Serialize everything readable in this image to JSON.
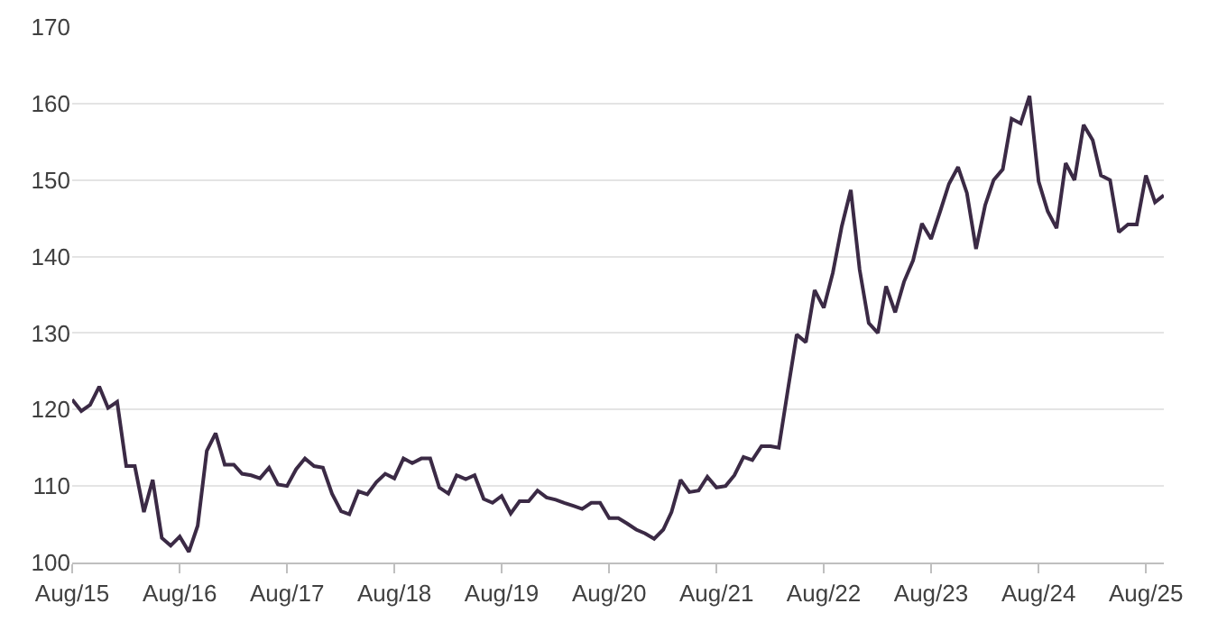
{
  "chart_data": {
    "type": "line",
    "x": [
      "2015-08",
      "2015-09",
      "2015-10",
      "2015-11",
      "2015-12",
      "2016-01",
      "2016-02",
      "2016-03",
      "2016-04",
      "2016-05",
      "2016-06",
      "2016-07",
      "2016-08",
      "2016-09",
      "2016-10",
      "2016-11",
      "2016-12",
      "2017-01",
      "2017-02",
      "2017-03",
      "2017-04",
      "2017-05",
      "2017-06",
      "2017-07",
      "2017-08",
      "2017-09",
      "2017-10",
      "2017-11",
      "2017-12",
      "2018-01",
      "2018-02",
      "2018-03",
      "2018-04",
      "2018-05",
      "2018-06",
      "2018-07",
      "2018-08",
      "2018-09",
      "2018-10",
      "2018-11",
      "2018-12",
      "2019-01",
      "2019-02",
      "2019-03",
      "2019-04",
      "2019-05",
      "2019-06",
      "2019-07",
      "2019-08",
      "2019-09",
      "2019-10",
      "2019-11",
      "2019-12",
      "2020-01",
      "2020-02",
      "2020-03",
      "2020-04",
      "2020-05",
      "2020-06",
      "2020-07",
      "2020-08",
      "2020-09",
      "2020-10",
      "2020-11",
      "2020-12",
      "2021-01",
      "2021-02",
      "2021-03",
      "2021-04",
      "2021-05",
      "2021-06",
      "2021-07",
      "2021-08",
      "2021-09",
      "2021-10",
      "2021-11",
      "2021-12",
      "2022-01",
      "2022-02",
      "2022-03",
      "2022-04",
      "2022-05",
      "2022-06",
      "2022-07",
      "2022-08",
      "2022-09",
      "2022-10",
      "2022-11",
      "2022-12",
      "2023-01",
      "2023-02",
      "2023-03",
      "2023-04",
      "2023-05",
      "2023-06",
      "2023-07",
      "2023-08",
      "2023-09",
      "2023-10",
      "2023-11",
      "2023-12",
      "2024-01",
      "2024-02",
      "2024-03",
      "2024-04",
      "2024-05",
      "2024-06",
      "2024-07",
      "2024-08",
      "2024-09",
      "2024-10",
      "2024-11",
      "2024-12",
      "2025-01",
      "2025-02",
      "2025-03",
      "2025-04",
      "2025-05",
      "2025-06",
      "2025-07",
      "2025-08",
      "2025-09",
      "2025-10"
    ],
    "series": [
      {
        "color": "#3b2a45",
        "values": [
          121.3,
          119.8,
          120.6,
          123.0,
          120.2,
          121.0,
          112.6,
          112.6,
          106.6,
          110.8,
          103.2,
          102.2,
          103.4,
          101.4,
          104.8,
          114.6,
          116.9,
          112.8,
          112.8,
          111.6,
          111.4,
          111.0,
          112.4,
          110.2,
          110.0,
          112.2,
          113.6,
          112.6,
          112.4,
          109.0,
          106.7,
          106.3,
          109.3,
          108.9,
          110.5,
          111.6,
          111.0,
          113.6,
          113.0,
          113.6,
          113.6,
          109.8,
          109.0,
          111.4,
          110.9,
          111.4,
          108.3,
          107.8,
          108.7,
          106.4,
          108.0,
          108.0,
          109.4,
          108.5,
          108.2,
          107.8,
          107.4,
          107.0,
          107.8,
          107.8,
          105.8,
          105.8,
          105.1,
          104.3,
          103.8,
          103.1,
          104.3,
          106.6,
          110.8,
          109.2,
          109.4,
          111.2,
          109.8,
          110.0,
          111.4,
          113.8,
          113.4,
          115.2,
          115.2,
          115.0,
          122.6,
          129.8,
          128.8,
          135.6,
          133.3,
          137.9,
          143.9,
          148.7,
          138.3,
          131.3,
          130.0,
          136.1,
          132.7,
          136.7,
          139.5,
          144.3,
          142.3,
          145.9,
          149.5,
          151.7,
          148.3,
          141.0,
          146.7,
          150.0,
          151.4,
          158.0,
          157.4,
          161.0,
          149.8,
          145.9,
          143.7,
          152.2,
          150.0,
          157.2,
          155.2,
          150.6,
          150.0,
          143.2,
          144.2,
          144.2,
          150.6,
          147.1,
          148.0
        ]
      }
    ],
    "xlim": [
      "2015-08",
      "2025-10"
    ],
    "xticks": [
      {
        "value": "2015-08",
        "label": "Aug/15"
      },
      {
        "value": "2016-08",
        "label": "Aug/16"
      },
      {
        "value": "2017-08",
        "label": "Aug/17"
      },
      {
        "value": "2018-08",
        "label": "Aug/18"
      },
      {
        "value": "2019-08",
        "label": "Aug/19"
      },
      {
        "value": "2020-08",
        "label": "Aug/20"
      },
      {
        "value": "2021-08",
        "label": "Aug/21"
      },
      {
        "value": "2022-08",
        "label": "Aug/22"
      },
      {
        "value": "2023-08",
        "label": "Aug/23"
      },
      {
        "value": "2024-08",
        "label": "Aug/24"
      },
      {
        "value": "2025-08",
        "label": "Aug/25"
      }
    ],
    "ylim": [
      100,
      170
    ],
    "yticks": [
      100,
      110,
      120,
      130,
      140,
      150,
      160,
      170
    ],
    "grid": "y",
    "marker": "none",
    "line_style": "solid"
  }
}
